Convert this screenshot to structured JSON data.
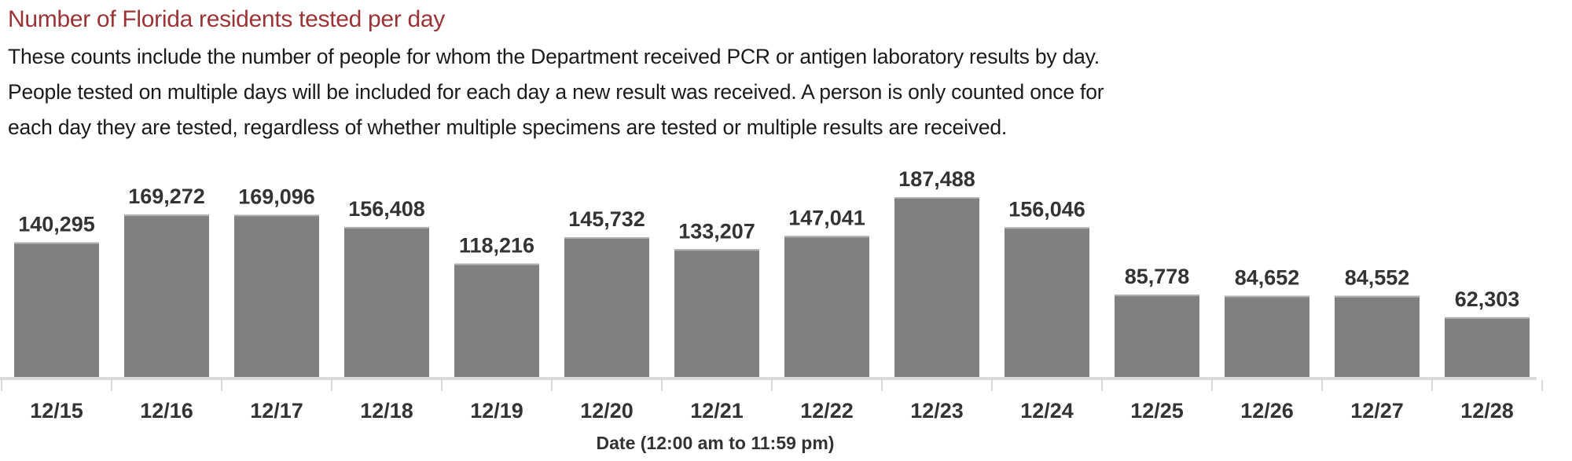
{
  "chart_data": {
    "type": "bar",
    "title": "Number of Florida residents tested per day",
    "subtitle_lines": [
      "These counts include the number of people for whom the Department received PCR or antigen laboratory results by day.",
      "People tested on multiple days will be included for each day a new result was received. A person is only counted once for",
      "each day they are tested, regardless of whether multiple specimens are tested or multiple results are received."
    ],
    "categories": [
      "12/15",
      "12/16",
      "12/17",
      "12/18",
      "12/19",
      "12/20",
      "12/21",
      "12/22",
      "12/23",
      "12/24",
      "12/25",
      "12/26",
      "12/27",
      "12/28"
    ],
    "values": [
      140295,
      169272,
      169096,
      156408,
      118216,
      145732,
      133207,
      147041,
      187488,
      156046,
      85778,
      84652,
      84552,
      62303
    ],
    "value_labels": [
      "140,295",
      "169,272",
      "169,096",
      "156,408",
      "118,216",
      "145,732",
      "133,207",
      "147,041",
      "187,488",
      "156,046",
      "85,778",
      "84,652",
      "84,552",
      "62,303"
    ],
    "xlabel": "Date (12:00 am to 11:59 pm)",
    "ylabel": "",
    "ylim": [
      0,
      187488
    ],
    "grid": false,
    "bar_color": "#808080",
    "title_color": "#9b3336"
  }
}
